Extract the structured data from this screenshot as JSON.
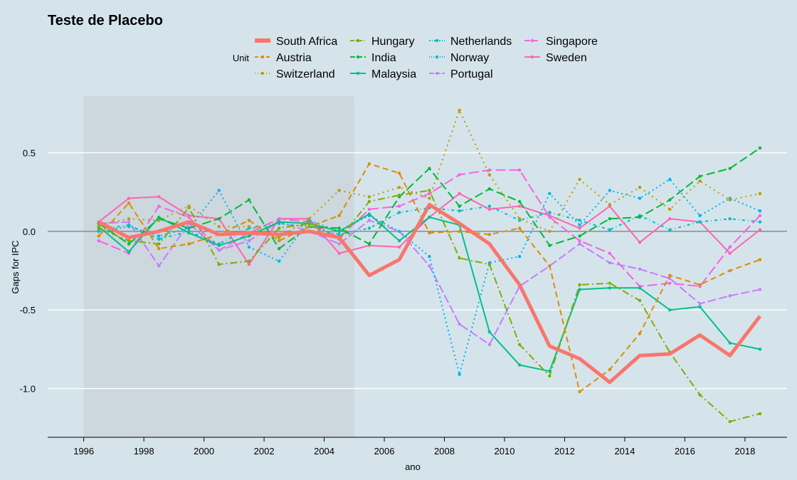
{
  "chart_data": {
    "type": "line",
    "title": "Teste de Placebo",
    "xlabel": "ano",
    "ylabel": "Gaps  for IPC",
    "xlim": [
      1994.8,
      2019.4
    ],
    "ylim": [
      -1.31,
      0.86
    ],
    "x_ticks": [
      1996,
      1998,
      2000,
      2002,
      2004,
      2006,
      2008,
      2010,
      2012,
      2014,
      2016,
      2018
    ],
    "y_ticks": [
      0.5,
      0.0,
      -0.5,
      -1.0
    ],
    "y_tick_labels": [
      "0.5",
      "0.0",
      "-0.5",
      "-1.0"
    ],
    "pre_treatment_shading": {
      "from": 1996,
      "to": 2005
    },
    "legend_title": "Unit",
    "x": [
      1996.5,
      1997.5,
      1998.5,
      1999.5,
      2000.5,
      2001.5,
      2002.5,
      2003.5,
      2004.5,
      2005.5,
      2006.5,
      2007.5,
      2008.5,
      2009.5,
      2010.5,
      2011.5,
      2012.5,
      2013.5,
      2014.5,
      2015.5,
      2016.5,
      2017.5,
      2018.5
    ],
    "series": [
      {
        "name": "South Africa",
        "color": "#F8766D",
        "dash": "",
        "width": 5,
        "markers": false,
        "values": [
          0.06,
          -0.04,
          0.0,
          0.06,
          -0.02,
          -0.01,
          -0.02,
          0.0,
          -0.04,
          -0.28,
          -0.18,
          0.17,
          0.05,
          -0.08,
          -0.34,
          -0.73,
          -0.81,
          -0.96,
          -0.79,
          -0.78,
          -0.66,
          -0.79,
          -0.54
        ]
      },
      {
        "name": "Austria",
        "color": "#DE8C00",
        "dash": "8,5",
        "width": 2,
        "markers": true,
        "values": [
          -0.03,
          0.18,
          -0.11,
          -0.08,
          -0.02,
          0.07,
          -0.06,
          0.03,
          0.1,
          0.43,
          0.37,
          -0.01,
          0.0,
          -0.02,
          0.02,
          -0.22,
          -1.02,
          -0.88,
          -0.65,
          -0.28,
          -0.34,
          -0.25,
          -0.18
        ]
      },
      {
        "name": "Switzerland",
        "color": "#B79F00",
        "dash": "2,5",
        "width": 2,
        "markers": true,
        "values": [
          0.04,
          0.08,
          0.07,
          0.16,
          0.03,
          0.03,
          -0.04,
          0.08,
          0.26,
          0.22,
          0.28,
          0.21,
          0.77,
          0.36,
          0.08,
          0.0,
          0.33,
          0.17,
          0.28,
          0.14,
          0.32,
          0.2,
          0.24
        ]
      },
      {
        "name": "Hungary",
        "color": "#7CAE00",
        "dash": "10,4,2,4",
        "width": 2,
        "markers": true,
        "values": [
          0.02,
          -0.06,
          -0.08,
          0.15,
          -0.21,
          -0.19,
          0.02,
          0.05,
          -0.05,
          0.19,
          0.23,
          0.26,
          -0.17,
          -0.21,
          -0.72,
          -0.92,
          -0.34,
          -0.33,
          -0.44,
          -0.77,
          -1.04,
          -1.21,
          -1.16
        ]
      },
      {
        "name": "India",
        "color": "#00BA38",
        "dash": "12,5",
        "width": 2,
        "markers": true,
        "values": [
          0.05,
          -0.08,
          0.08,
          0.02,
          0.08,
          0.2,
          -0.11,
          0.03,
          0.02,
          -0.08,
          0.22,
          0.4,
          0.16,
          0.27,
          0.19,
          -0.09,
          -0.03,
          0.08,
          0.09,
          0.2,
          0.35,
          0.4,
          0.53
        ]
      },
      {
        "name": "Malaysia",
        "color": "#00C08B",
        "dash": "",
        "width": 2,
        "markers": true,
        "values": [
          0.03,
          -0.13,
          0.09,
          -0.01,
          -0.09,
          -0.03,
          0.06,
          0.05,
          0.0,
          0.11,
          -0.06,
          0.09,
          0.04,
          -0.64,
          -0.85,
          -0.89,
          -0.37,
          -0.36,
          -0.36,
          -0.5,
          -0.48,
          -0.71,
          -0.75
        ]
      },
      {
        "name": "Netherlands",
        "color": "#00BFC4",
        "dash": "4,4,1,4",
        "width": 2,
        "markers": true,
        "values": [
          0.01,
          0.04,
          -0.05,
          0.0,
          -0.08,
          0.02,
          0.05,
          0.03,
          -0.02,
          0.02,
          0.12,
          0.15,
          0.13,
          0.16,
          0.07,
          0.12,
          0.07,
          0.01,
          0.1,
          0.01,
          0.06,
          0.08,
          0.06
        ]
      },
      {
        "name": "Norway",
        "color": "#00B4F0",
        "dash": "2,4",
        "width": 2,
        "markers": true,
        "values": [
          0.0,
          0.03,
          -0.03,
          0.02,
          0.26,
          -0.1,
          -0.19,
          0.07,
          0.0,
          0.1,
          0.0,
          -0.16,
          -0.91,
          -0.2,
          -0.16,
          0.24,
          0.04,
          0.26,
          0.21,
          0.33,
          0.1,
          0.21,
          0.13
        ]
      },
      {
        "name": "Portugal",
        "color": "#C77CFF",
        "dash": "12,4",
        "width": 2,
        "markers": true,
        "values": [
          0.05,
          0.06,
          -0.22,
          0.05,
          -0.12,
          -0.06,
          0.06,
          0.0,
          -0.08,
          0.07,
          0.0,
          -0.22,
          -0.59,
          -0.72,
          -0.35,
          -0.22,
          -0.08,
          -0.2,
          -0.24,
          -0.3,
          -0.46,
          -0.41,
          -0.37
        ]
      },
      {
        "name": "Singapore",
        "color": "#F564E3",
        "dash": "14,5",
        "width": 2,
        "markers": true,
        "values": [
          -0.06,
          -0.14,
          0.16,
          0.09,
          -0.12,
          -0.01,
          0.08,
          0.06,
          -0.04,
          0.14,
          0.16,
          0.24,
          0.36,
          0.39,
          0.39,
          0.09,
          -0.06,
          -0.14,
          -0.35,
          -0.33,
          -0.35,
          -0.1,
          0.1
        ]
      },
      {
        "name": "Sweden",
        "color": "#FF64B0",
        "dash": "",
        "width": 2,
        "markers": true,
        "values": [
          0.06,
          0.21,
          0.22,
          0.1,
          0.08,
          -0.21,
          0.08,
          0.08,
          -0.14,
          -0.09,
          -0.1,
          0.09,
          0.24,
          0.14,
          0.16,
          0.1,
          0.02,
          0.16,
          -0.07,
          0.08,
          0.06,
          -0.14,
          0.01
        ]
      }
    ]
  }
}
